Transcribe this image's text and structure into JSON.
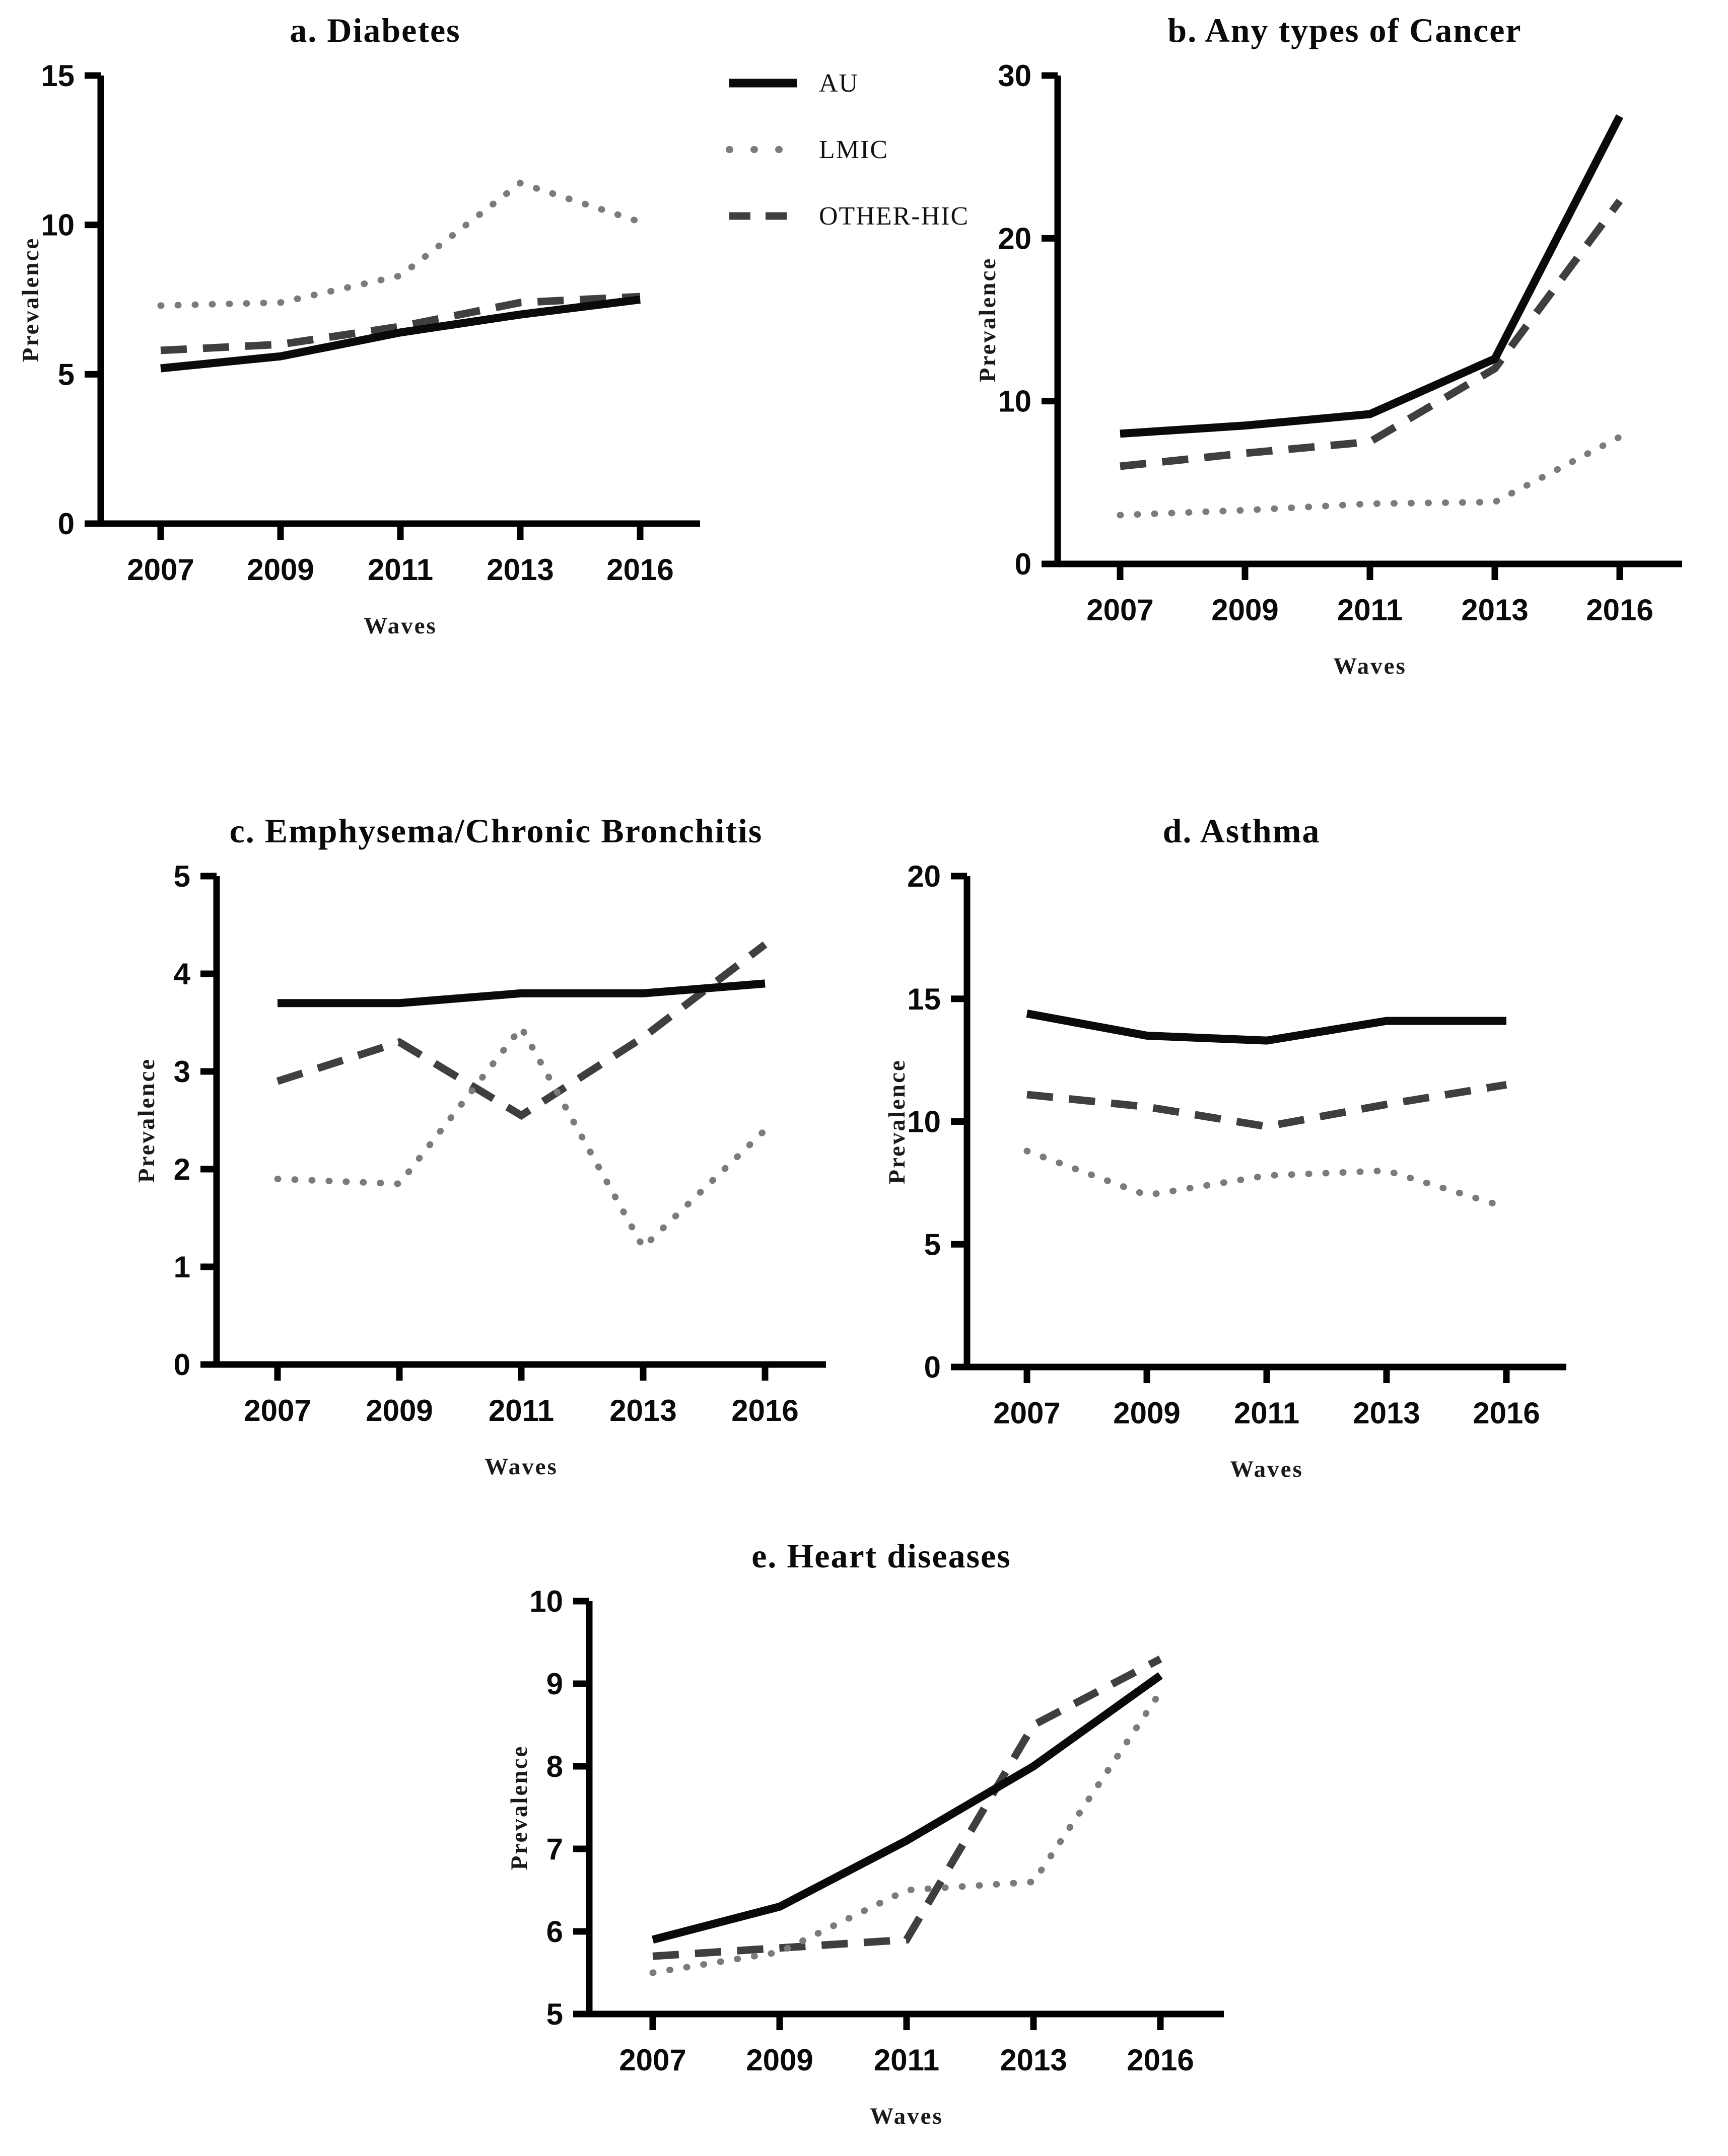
{
  "figure": {
    "background": "#ffffff"
  },
  "legend": {
    "items": [
      {
        "label": "AU",
        "style": "solid",
        "color": "#0a0a0a"
      },
      {
        "label": "LMIC",
        "style": "dotted",
        "color": "#7b7b7b"
      },
      {
        "label": "OTHER-HIC",
        "style": "dashed",
        "color": "#3f3f3f"
      }
    ]
  },
  "chart_data": [
    {
      "type": "line",
      "title": "a. Diabetes",
      "xlabel": "Waves",
      "ylabel": "Prevalence",
      "categories": [
        "2007",
        "2009",
        "2011",
        "2013",
        "2016"
      ],
      "ylim": [
        0,
        15
      ],
      "yticks": [
        0,
        5,
        10,
        15
      ],
      "grid": false,
      "series": [
        {
          "name": "AU",
          "style": "solid",
          "color": "#0a0a0a",
          "values": [
            5.2,
            5.6,
            6.4,
            7.0,
            7.5
          ]
        },
        {
          "name": "LMIC",
          "style": "dotted",
          "color": "#7b7b7b",
          "values": [
            7.3,
            7.4,
            8.3,
            11.4,
            10.1
          ]
        },
        {
          "name": "OTHER-HIC",
          "style": "dashed",
          "color": "#3f3f3f",
          "values": [
            5.8,
            6.0,
            6.6,
            7.4,
            7.6
          ]
        }
      ]
    },
    {
      "type": "line",
      "title": "b. Any types of Cancer",
      "xlabel": "Waves",
      "ylabel": "Prevalence",
      "categories": [
        "2007",
        "2009",
        "2011",
        "2013",
        "2016"
      ],
      "ylim": [
        0,
        30
      ],
      "yticks": [
        0,
        10,
        20,
        30
      ],
      "grid": false,
      "series": [
        {
          "name": "AU",
          "style": "solid",
          "color": "#0a0a0a",
          "values": [
            8.0,
            8.5,
            9.2,
            12.6,
            27.5
          ]
        },
        {
          "name": "LMIC",
          "style": "dotted",
          "color": "#7b7b7b",
          "values": [
            3.0,
            3.3,
            3.7,
            3.8,
            7.8
          ]
        },
        {
          "name": "OTHER-HIC",
          "style": "dashed",
          "color": "#3f3f3f",
          "values": [
            6.0,
            6.8,
            7.5,
            12.0,
            22.3
          ]
        }
      ]
    },
    {
      "type": "line",
      "title": "c. Emphysema/Chronic Bronchitis",
      "xlabel": "Waves",
      "ylabel": "Prevalence",
      "categories": [
        "2007",
        "2009",
        "2011",
        "2013",
        "2016"
      ],
      "ylim": [
        0,
        5
      ],
      "yticks": [
        0,
        1,
        2,
        3,
        4,
        5
      ],
      "grid": false,
      "series": [
        {
          "name": "AU",
          "style": "solid",
          "color": "#0a0a0a",
          "values": [
            3.7,
            3.7,
            3.8,
            3.8,
            3.9
          ]
        },
        {
          "name": "LMIC",
          "style": "dotted",
          "color": "#7b7b7b",
          "values": [
            1.9,
            1.85,
            3.45,
            1.2,
            2.4
          ]
        },
        {
          "name": "OTHER-HIC",
          "style": "dashed",
          "color": "#3f3f3f",
          "values": [
            2.9,
            3.3,
            2.55,
            3.35,
            4.3
          ]
        }
      ]
    },
    {
      "type": "line",
      "title": "d. Asthma",
      "xlabel": "Waves",
      "ylabel": "Prevalence",
      "categories": [
        "2007",
        "2009",
        "2011",
        "2013",
        "2016"
      ],
      "ylim": [
        0,
        20
      ],
      "yticks": [
        0,
        5,
        10,
        15,
        20
      ],
      "grid": false,
      "series": [
        {
          "name": "AU",
          "style": "solid",
          "color": "#0a0a0a",
          "values": [
            14.4,
            13.5,
            13.3,
            14.1,
            14.1
          ]
        },
        {
          "name": "LMIC",
          "style": "dotted",
          "color": "#7b7b7b",
          "values": [
            8.8,
            7.0,
            7.8,
            8.0,
            6.5
          ]
        },
        {
          "name": "OTHER-HIC",
          "style": "dashed",
          "color": "#3f3f3f",
          "values": [
            11.1,
            10.6,
            9.8,
            10.7,
            11.5
          ]
        }
      ]
    },
    {
      "type": "line",
      "title": "e. Heart diseases",
      "xlabel": "Waves",
      "ylabel": "Prevalence",
      "categories": [
        "2007",
        "2009",
        "2011",
        "2013",
        "2016"
      ],
      "ylim": [
        5,
        10
      ],
      "yticks": [
        5,
        6,
        7,
        8,
        9,
        10
      ],
      "grid": false,
      "series": [
        {
          "name": "AU",
          "style": "solid",
          "color": "#0a0a0a",
          "values": [
            5.9,
            6.3,
            7.1,
            8.0,
            9.1
          ]
        },
        {
          "name": "LMIC",
          "style": "dotted",
          "color": "#7b7b7b",
          "values": [
            5.5,
            5.75,
            6.5,
            6.6,
            8.9
          ]
        },
        {
          "name": "OTHER-HIC",
          "style": "dashed",
          "color": "#3f3f3f",
          "values": [
            5.7,
            5.8,
            5.9,
            8.5,
            9.3
          ]
        }
      ]
    }
  ]
}
